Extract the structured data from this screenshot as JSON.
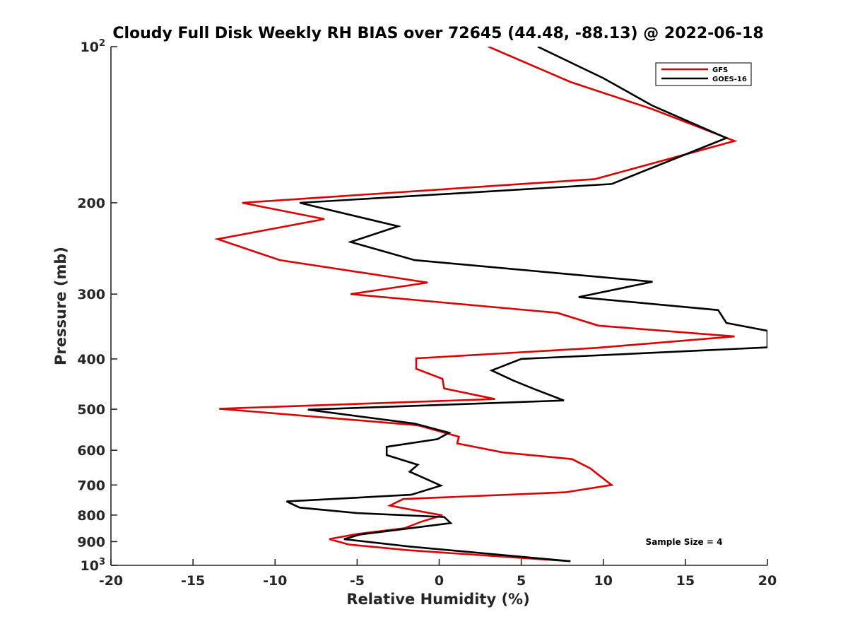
{
  "chart_data": {
    "type": "line",
    "title": "Cloudy Full Disk Weekly RH BIAS over 72645 (44.48, -88.13) @ 2022-06-18",
    "xlabel": "Relative Humidity (%)",
    "ylabel": "Pressure (mb)",
    "xlim": [
      -20,
      20
    ],
    "ylim": [
      100,
      1000
    ],
    "y_scale": "log",
    "y_direction": "reversed",
    "x_ticks": [
      "-20",
      "-15",
      "-10",
      "-5",
      "0",
      "5",
      "10",
      "15",
      "20"
    ],
    "y_ticks": [
      {
        "value": 100,
        "label": "10",
        "sup": "2"
      },
      {
        "value": 200,
        "label": "200"
      },
      {
        "value": 300,
        "label": "300"
      },
      {
        "value": 400,
        "label": "400"
      },
      {
        "value": 500,
        "label": "500"
      },
      {
        "value": 600,
        "label": "600"
      },
      {
        "value": 700,
        "label": "700"
      },
      {
        "value": 800,
        "label": "800"
      },
      {
        "value": 900,
        "label": "900"
      },
      {
        "value": 1000,
        "label": "10",
        "sup": "3"
      }
    ],
    "grid": false,
    "legend_position": "top-right",
    "annotation": "Sample Size = 4",
    "series": [
      {
        "name": "GFS",
        "color": "#dd0000",
        "points": [
          [
            3.0,
            100
          ],
          [
            8.0,
            117
          ],
          [
            13.0,
            132
          ],
          [
            18.0,
            152
          ],
          [
            9.5,
            180
          ],
          [
            -12.0,
            200
          ],
          [
            -7.0,
            215
          ],
          [
            -13.5,
            235
          ],
          [
            -9.7,
            258
          ],
          [
            -0.7,
            285
          ],
          [
            -5.4,
            300
          ],
          [
            7.2,
            326
          ],
          [
            9.7,
            345
          ],
          [
            18.0,
            362
          ],
          [
            9.5,
            381
          ],
          [
            -1.4,
            399
          ],
          [
            -1.4,
            418
          ],
          [
            0.2,
            437
          ],
          [
            0.3,
            456
          ],
          [
            3.4,
            478
          ],
          [
            -13.4,
            499
          ],
          [
            -1.3,
            537
          ],
          [
            1.2,
            565
          ],
          [
            1.1,
            582
          ],
          [
            3.9,
            606
          ],
          [
            8.1,
            624
          ],
          [
            9.2,
            650
          ],
          [
            10.5,
            700
          ],
          [
            7.7,
            723
          ],
          [
            -2.2,
            745
          ],
          [
            -3.0,
            767
          ],
          [
            -1.9,
            779
          ],
          [
            0.2,
            801
          ],
          [
            -1.1,
            824
          ],
          [
            -2.1,
            848
          ],
          [
            -5.0,
            870
          ],
          [
            -6.7,
            890
          ],
          [
            -5.5,
            912
          ],
          [
            -1.9,
            935
          ],
          [
            8.0,
            982
          ]
        ]
      },
      {
        "name": "GOES-16",
        "color": "#000000",
        "points": [
          [
            6.0,
            100
          ],
          [
            10.0,
            115
          ],
          [
            13.0,
            130
          ],
          [
            17.5,
            150
          ],
          [
            10.5,
            184
          ],
          [
            -8.5,
            200
          ],
          [
            -2.5,
            222
          ],
          [
            -5.4,
            238
          ],
          [
            -1.5,
            258
          ],
          [
            13.0,
            284
          ],
          [
            8.5,
            304
          ],
          [
            17.0,
            322
          ],
          [
            17.5,
            341
          ],
          [
            20.0,
            353
          ],
          [
            20.0,
            380
          ],
          [
            5.0,
            400
          ],
          [
            3.2,
            421
          ],
          [
            4.5,
            440
          ],
          [
            5.7,
            456
          ],
          [
            7.6,
            481
          ],
          [
            -8.0,
            501
          ],
          [
            -1.5,
            533
          ],
          [
            0.6,
            555
          ],
          [
            -0.1,
            571
          ],
          [
            -3.2,
            591
          ],
          [
            -3.2,
            613
          ],
          [
            -1.3,
            640
          ],
          [
            -1.8,
            660
          ],
          [
            -1.0,
            677
          ],
          [
            0.1,
            702
          ],
          [
            -1.7,
            731
          ],
          [
            -9.3,
            753
          ],
          [
            -8.5,
            774
          ],
          [
            -5.0,
            793
          ],
          [
            0.3,
            807
          ],
          [
            0.7,
            829
          ],
          [
            -2.0,
            850
          ],
          [
            -4.8,
            872
          ],
          [
            -5.8,
            890
          ],
          [
            -1.8,
            920
          ],
          [
            8.0,
            982
          ]
        ]
      }
    ]
  }
}
